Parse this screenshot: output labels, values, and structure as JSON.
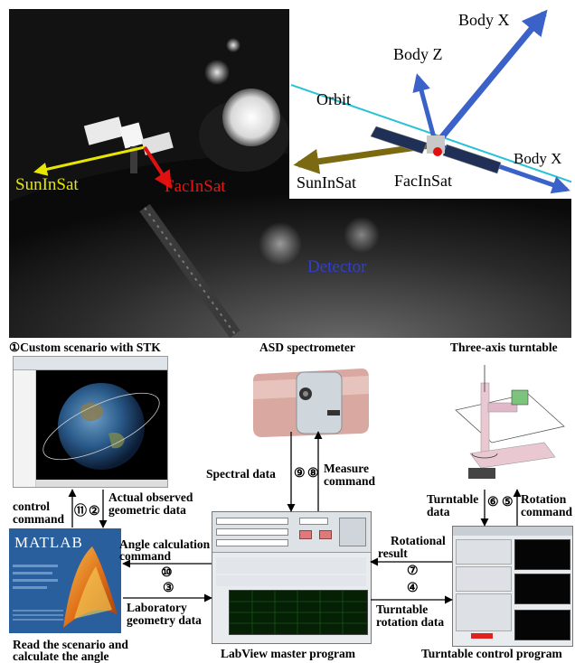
{
  "photo": {
    "labels": {
      "sun_in_sat": "SunInSat",
      "fac_in_sat": "FacInSat",
      "detector": "Detector"
    },
    "inset": {
      "body_x_top": "Body X",
      "body_z": "Body Z",
      "orbit": "Orbit",
      "body_x_right": "Body X",
      "sun_in_sat": "SunInSat",
      "fac_in_sat": "FacInSat"
    }
  },
  "stk": {
    "title": "①Custom scenario with STK"
  },
  "spectrometer": {
    "title": "ASD spectrometer"
  },
  "turntable": {
    "title": "Three-axis turntable"
  },
  "matlab": {
    "logo": "MATLAB",
    "caption_line1": "Read the scenario and",
    "caption_line2": "calculate the angle"
  },
  "labview": {
    "caption": "LabView master program"
  },
  "turntable_program": {
    "caption": "Turntable control program"
  },
  "arrows": {
    "control_command_1": "control",
    "control_command_2": "command",
    "step_11": "⑪",
    "step_2": "②",
    "actual_observed_1": "Actual observed",
    "actual_observed_2": "geometric data",
    "spectral_data": "Spectral data",
    "step_9": "⑨",
    "step_8": "⑧",
    "measure_command_1": "Measure",
    "measure_command_2": "command",
    "turntable_data_1": "Turntable",
    "turntable_data_2": "data",
    "step_6": "⑥",
    "step_5": "⑤",
    "rotation_command_1": "Rotation",
    "rotation_command_2": "command",
    "angle_calc_1": "Angle calculation",
    "angle_calc_2": "command",
    "step_10": "⑩",
    "rotational_result_1": "Rotational",
    "rotational_result_2": "result",
    "step_7": "⑦",
    "step_3": "③",
    "lab_geometry_1": "Laboratory",
    "lab_geometry_2": "geometry data",
    "step_4": "④",
    "turntable_rotation_1": "Turntable",
    "turntable_rotation_2": "rotation data"
  },
  "colors": {
    "sun_arrow": "#e6e600",
    "fac_arrow": "#e01010",
    "body_arrow": "#3a62c8",
    "orbit_line": "#27c2d6",
    "detector_text": "#2f3fd0"
  }
}
